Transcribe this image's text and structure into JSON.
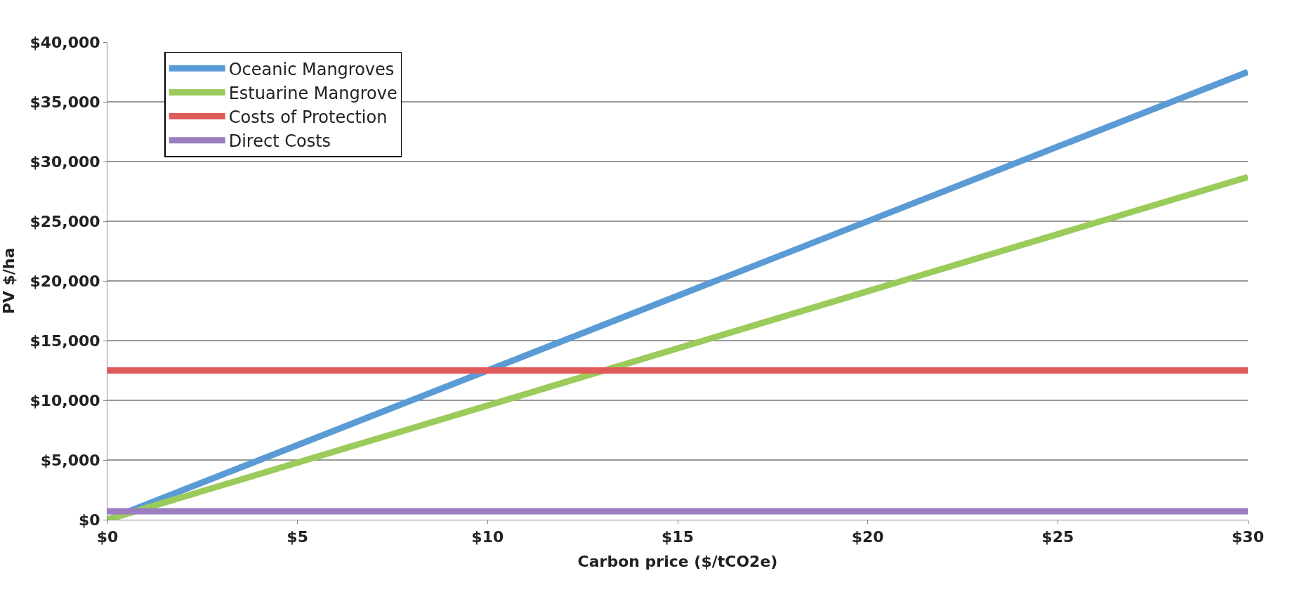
{
  "chart_data": {
    "type": "line",
    "xlabel": "Carbon price ($/tCO2e)",
    "ylabel": "PV $/ha",
    "x": [
      0,
      30
    ],
    "series": [
      {
        "name": "Oceanic Mangroves",
        "color": "#5b9bd5",
        "values": [
          0,
          37500
        ]
      },
      {
        "name": "Estuarine Mangrove",
        "color": "#9bcb5a",
        "values": [
          0,
          28700
        ]
      },
      {
        "name": "Costs of Protection",
        "color": "#e05a5a",
        "values": [
          12500,
          12500
        ]
      },
      {
        "name": "Direct Costs",
        "color": "#9b7ec0",
        "values": [
          700,
          700
        ]
      }
    ],
    "xlim": [
      0,
      30
    ],
    "xticks": [
      {
        "value": 0,
        "label": "$0"
      },
      {
        "value": 5,
        "label": "$5"
      },
      {
        "value": 10,
        "label": "$10"
      },
      {
        "value": 15,
        "label": "$15"
      },
      {
        "value": 20,
        "label": "$20"
      },
      {
        "value": 25,
        "label": "$25"
      },
      {
        "value": 30,
        "label": "$30"
      }
    ],
    "ylim": [
      0,
      40000
    ],
    "yticks": [
      {
        "value": 0,
        "label": "$0"
      },
      {
        "value": 5000,
        "label": "$5,000"
      },
      {
        "value": 10000,
        "label": "$10,000"
      },
      {
        "value": 15000,
        "label": "$15,000"
      },
      {
        "value": 20000,
        "label": "$20,000"
      },
      {
        "value": 25000,
        "label": "$25,000"
      },
      {
        "value": 30000,
        "label": "$30,000"
      },
      {
        "value": 35000,
        "label": "$35,000"
      },
      {
        "value": 40000,
        "label": "$40,000"
      }
    ],
    "grid": "y",
    "legend": "top left",
    "marker": "none",
    "line_style": "solid"
  }
}
